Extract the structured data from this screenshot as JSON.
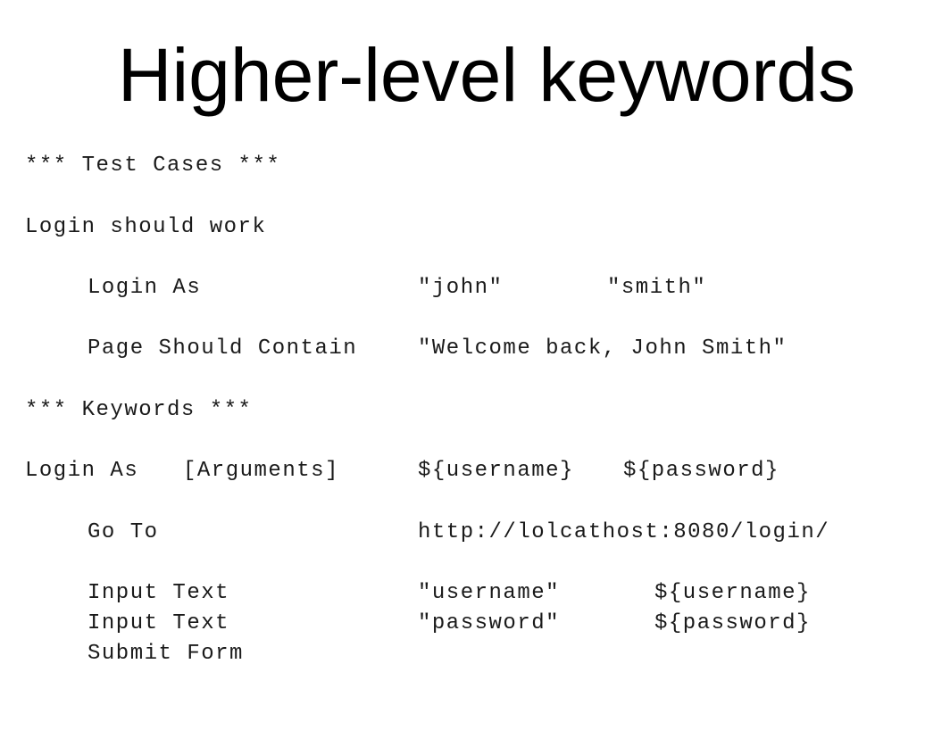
{
  "title": "Higher-level keywords",
  "code": {
    "test_cases_header": "*** Test Cases ***",
    "test_name": "Login should work",
    "step1": {
      "keyword": "Login As",
      "arg1": "\"john\"",
      "arg2": "\"smith\""
    },
    "step2": {
      "keyword": "Page Should Contain",
      "arg1": "\"Welcome back, John Smith\""
    },
    "keywords_header": "*** Keywords ***",
    "kw_def": {
      "name": "Login As",
      "setting": "[Arguments]",
      "arg1": "${username}",
      "arg2": "${password}"
    },
    "kw_step1": {
      "keyword": "Go To",
      "arg1": "http://lolcathost:8080/login/"
    },
    "kw_step2": {
      "keyword": "Input Text",
      "arg1": "\"username\"",
      "arg2": "${username}"
    },
    "kw_step3": {
      "keyword": "Input Text",
      "arg1": "\"password\"",
      "arg2": "${password}"
    },
    "kw_step4": {
      "keyword": "Submit Form"
    }
  }
}
